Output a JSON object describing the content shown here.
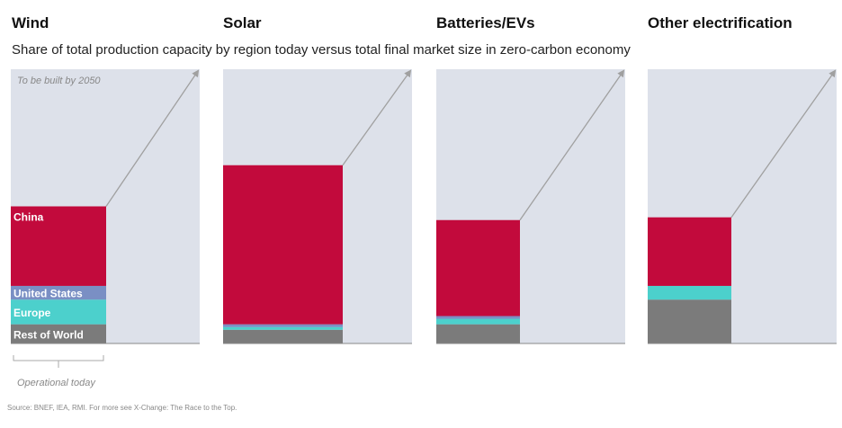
{
  "subtitle": "Share of total production capacity by region today versus total final market size in zero-carbon economy",
  "source": "Source: BNEF, IEA, RMI. For more see X-Change: The Race to the Top.",
  "colors": {
    "china": "#c20a3c",
    "united_states": "#7a8fc4",
    "europe": "#4cd0cc",
    "rest_of_world": "#7b7b7b",
    "market": "#dde1ea",
    "arrow": "#a0a0a0"
  },
  "annotations": {
    "to_be_built": "To be built by 2050",
    "operational_today": "Operational today"
  },
  "chart_data": {
    "type": "bar",
    "y_unit": "share of 2050 market size",
    "ylim": [
      0,
      1
    ],
    "series_names": [
      "China",
      "United States",
      "Europe",
      "Rest of World"
    ],
    "panels": [
      {
        "title": "Wind",
        "shares": {
          "China": 0.29,
          "United States": 0.05,
          "Europe": 0.09,
          "Rest of World": 0.07
        }
      },
      {
        "title": "Solar",
        "shares": {
          "China": 0.58,
          "United States": 0.01,
          "Europe": 0.01,
          "Rest of World": 0.05
        }
      },
      {
        "title": "Batteries/EVs",
        "shares": {
          "China": 0.35,
          "United States": 0.01,
          "Europe": 0.02,
          "Rest of World": 0.07
        }
      },
      {
        "title": "Other electrification",
        "shares": {
          "China": 0.25,
          "United States": 0.0,
          "Europe": 0.05,
          "Rest of World": 0.16
        }
      }
    ]
  }
}
